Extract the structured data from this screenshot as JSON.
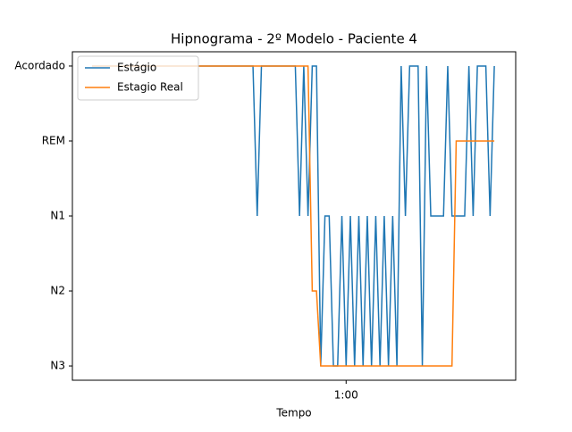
{
  "chart_data": {
    "type": "line",
    "title": "Hipnograma - 2º Modelo - Paciente 4",
    "xlabel": "Tempo",
    "x": [
      0,
      1,
      2,
      3,
      4,
      5,
      6,
      7,
      8,
      9,
      10,
      11,
      12,
      13,
      14,
      15,
      16,
      17,
      18,
      19,
      20,
      21,
      22,
      23,
      24,
      25,
      26,
      27,
      28,
      29,
      30,
      31,
      32,
      33,
      34,
      35,
      36,
      37,
      38,
      39,
      40,
      41,
      42,
      43,
      44,
      45,
      46,
      47,
      48,
      49,
      50,
      51,
      52,
      53,
      54,
      55,
      56,
      57,
      58,
      59,
      60,
      61,
      62,
      63,
      64,
      65,
      66,
      67,
      68,
      69,
      70,
      71,
      72,
      73,
      74,
      75,
      76,
      77,
      78,
      79,
      80,
      81,
      82,
      83,
      84,
      85,
      86,
      87,
      88,
      89,
      90,
      91,
      92,
      93,
      94,
      95
    ],
    "series": [
      {
        "name": "Estágio",
        "color": "#1f77b4",
        "values": [
          4,
          4,
          4,
          4,
          4,
          4,
          4,
          4,
          4,
          4,
          4,
          4,
          4,
          4,
          4,
          4,
          4,
          4,
          4,
          4,
          4,
          4,
          4,
          4,
          4,
          4,
          4,
          4,
          4,
          4,
          4,
          4,
          4,
          4,
          4,
          4,
          4,
          4,
          4,
          2,
          4,
          4,
          4,
          4,
          4,
          4,
          4,
          4,
          4,
          2,
          4,
          2,
          4,
          4,
          0,
          2,
          2,
          0,
          0,
          2,
          0,
          2,
          0,
          2,
          0,
          2,
          0,
          2,
          0,
          2,
          0,
          2,
          0,
          4,
          2,
          4,
          4,
          4,
          0,
          4,
          2,
          2,
          2,
          2,
          4,
          2,
          2,
          2,
          2,
          4,
          2,
          4,
          4,
          4,
          2,
          4
        ]
      },
      {
        "name": "Estagio Real",
        "color": "#ff7f0e",
        "values": [
          4,
          4,
          4,
          4,
          4,
          4,
          4,
          4,
          4,
          4,
          4,
          4,
          4,
          4,
          4,
          4,
          4,
          4,
          4,
          4,
          4,
          4,
          4,
          4,
          4,
          4,
          4,
          4,
          4,
          4,
          4,
          4,
          4,
          4,
          4,
          4,
          4,
          4,
          4,
          4,
          4,
          4,
          4,
          4,
          4,
          4,
          4,
          4,
          4,
          4,
          4,
          4,
          1,
          1,
          0,
          0,
          0,
          0,
          0,
          0,
          0,
          0,
          0,
          0,
          0,
          0,
          0,
          0,
          0,
          0,
          0,
          0,
          0,
          0,
          0,
          0,
          0,
          0,
          0,
          0,
          0,
          0,
          0,
          0,
          0,
          0,
          3,
          3,
          3,
          3,
          3,
          3,
          3,
          3,
          3,
          3
        ]
      }
    ],
    "xlim": [
      -4.65,
      100.05
    ],
    "xticks": [
      {
        "value": 60,
        "label": "1:00"
      }
    ],
    "ylim": [
      -0.19,
      4.19
    ],
    "yticks": [
      {
        "value": 0,
        "label": "N3"
      },
      {
        "value": 1,
        "label": "N2"
      },
      {
        "value": 2,
        "label": "N1"
      },
      {
        "value": 3,
        "label": "REM"
      },
      {
        "value": 4,
        "label": "Acordado"
      }
    ],
    "legend": "upper left"
  }
}
